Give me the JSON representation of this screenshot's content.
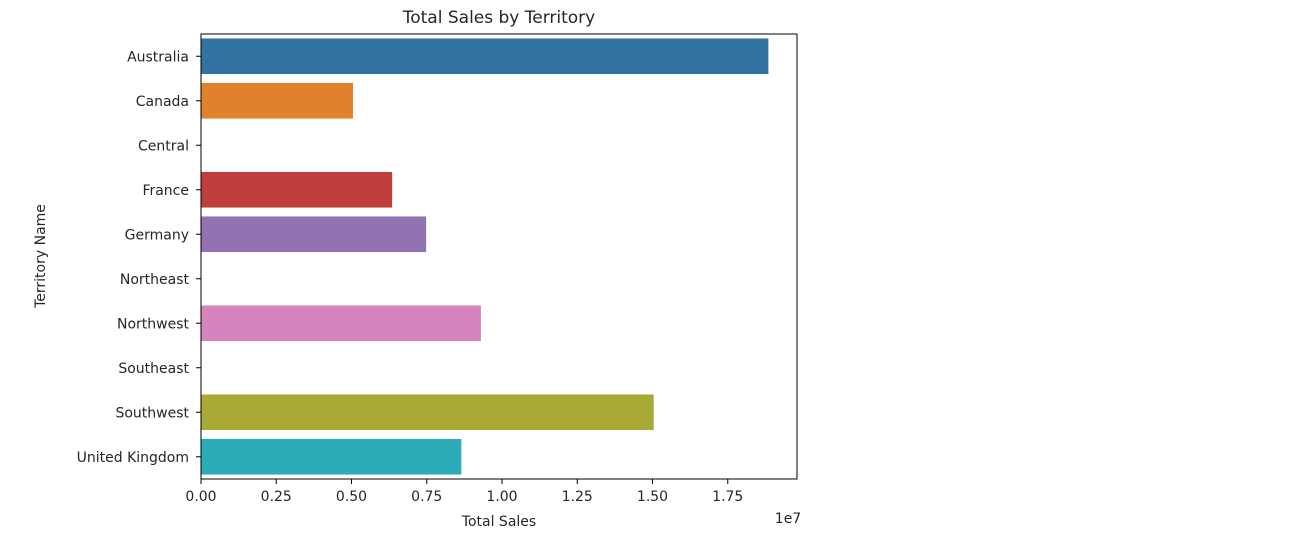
{
  "chart_data": {
    "type": "bar",
    "orientation": "horizontal",
    "title": "Total Sales by Territory",
    "xlabel": "Total Sales",
    "ylabel": "Territory Name",
    "x_scale_label": "1e7",
    "xlim": [
      0,
      19800000
    ],
    "x_ticks": [
      0,
      2500000,
      5000000,
      7500000,
      10000000,
      12500000,
      15000000,
      17500000
    ],
    "x_tick_labels": [
      "0.00",
      "0.25",
      "0.50",
      "0.75",
      "1.00",
      "1.25",
      "1.50",
      "1.75"
    ],
    "grid": false,
    "categories": [
      "Australia",
      "Canada",
      "Central",
      "France",
      "Germany",
      "Northeast",
      "Northwest",
      "Southeast",
      "Southwest",
      "United Kingdom"
    ],
    "values": [
      18850000,
      5050000,
      0,
      6350000,
      7480000,
      0,
      9300000,
      0,
      15040000,
      8650000
    ],
    "colors": [
      "#3274a1",
      "#e1812c",
      "#3a923a",
      "#c03d3e",
      "#9372b2",
      "#845b53",
      "#d684bd",
      "#7f7f7f",
      "#a9aa35",
      "#2eabb8"
    ]
  }
}
